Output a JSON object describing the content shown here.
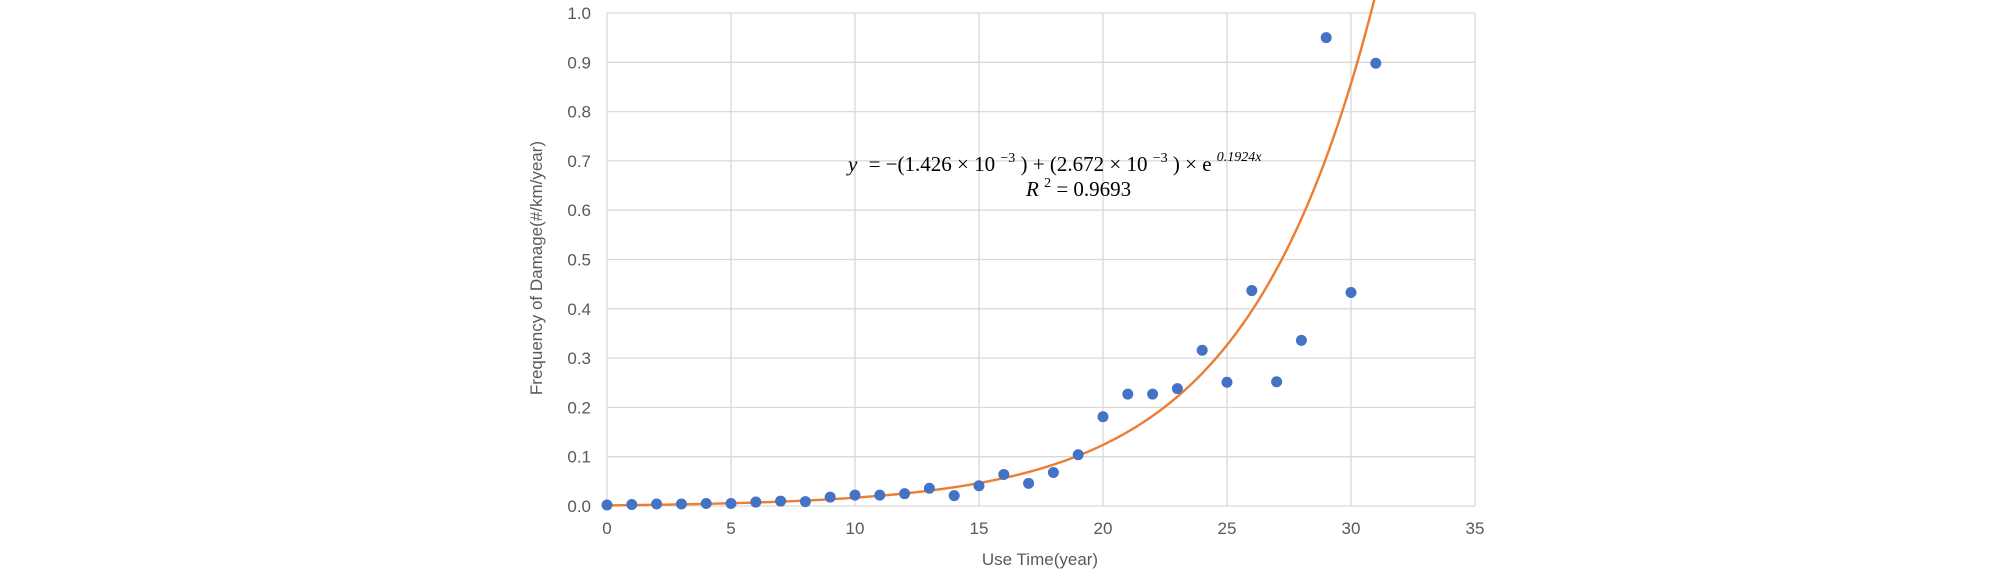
{
  "chart_data": {
    "type": "scatter",
    "xlabel": "Use Time(year)",
    "ylabel": "Frequency of Damage(#/km/year)",
    "xlim": [
      0,
      35
    ],
    "ylim": [
      0,
      1.0
    ],
    "x_ticks": [
      0,
      5,
      10,
      15,
      20,
      25,
      30,
      35
    ],
    "y_ticks": [
      0.0,
      0.1,
      0.2,
      0.3,
      0.4,
      0.5,
      0.6,
      0.7,
      0.8,
      0.9,
      1.0
    ],
    "grid": true,
    "colors": {
      "points": "#4472c4",
      "trendline": "#ed7d31"
    },
    "series": [
      {
        "kind": "scatter",
        "x": [
          0,
          1,
          2,
          3,
          4,
          5,
          6,
          7,
          8,
          9,
          10,
          11,
          12,
          13,
          14,
          15,
          16,
          17,
          18,
          19,
          20,
          21,
          22,
          23,
          24,
          25,
          26,
          27,
          28,
          29,
          30,
          31
        ],
        "y": [
          0.002,
          0.003,
          0.004,
          0.004,
          0.005,
          0.005,
          0.008,
          0.01,
          0.009,
          0.018,
          0.022,
          0.022,
          0.025,
          0.036,
          0.021,
          0.041,
          0.064,
          0.046,
          0.068,
          0.104,
          0.181,
          0.227,
          0.227,
          0.238,
          0.316,
          0.251,
          0.437,
          0.252,
          0.336,
          0.95,
          0.433,
          0.898
        ]
      },
      {
        "kind": "trendline",
        "model": "exponential",
        "a": -0.001426,
        "b": 0.002672,
        "c": 0.1924,
        "x_range": [
          0,
          31
        ]
      }
    ],
    "annotation": {
      "equation": {
        "lhs": "y",
        "rhs": "= −(1.426 × 10",
        "exp1": "−3",
        "mid": ") +  (2.672 × 10",
        "exp2": "−3",
        "tail": ") × e",
        "exp3": "0.1924x"
      },
      "r2": {
        "label": "R",
        "sup": "2",
        "value": " = 0.9693"
      }
    }
  }
}
